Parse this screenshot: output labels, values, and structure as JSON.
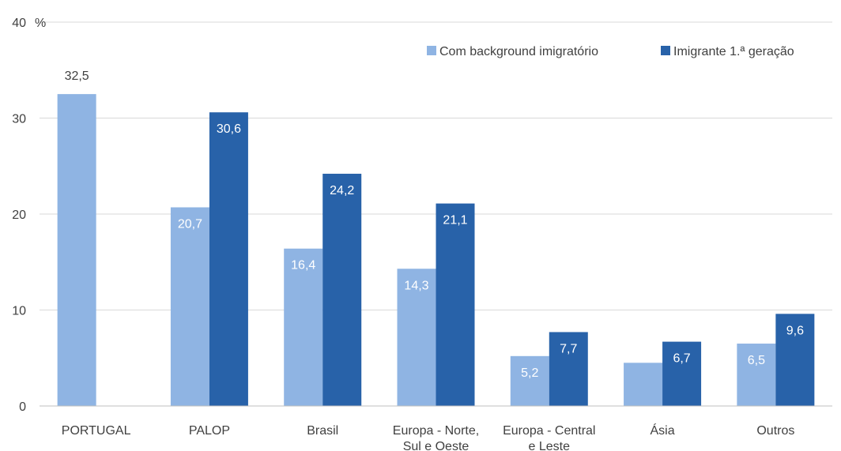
{
  "chart_data": {
    "type": "bar",
    "categories": [
      [
        "PORTUGAL"
      ],
      [
        "PALOP"
      ],
      [
        "Brasil"
      ],
      [
        "Europa - Norte,",
        "Sul e Oeste"
      ],
      [
        "Europa - Central",
        "e Leste"
      ],
      [
        "Ásia"
      ],
      [
        "Outros"
      ]
    ],
    "series": [
      {
        "name": "Com background imigratório",
        "color": "#8fb4e3",
        "values": [
          32.5,
          20.7,
          16.4,
          14.3,
          5.2,
          4.5,
          6.5
        ],
        "labels": [
          "32,5",
          "20,7",
          "16,4",
          "14,3",
          "5,2",
          "4,5",
          "6,5"
        ]
      },
      {
        "name": "Imigrante 1.ª geração",
        "color": "#2862a9",
        "values": [
          null,
          30.6,
          24.2,
          21.1,
          7.7,
          6.7,
          9.6
        ],
        "labels": [
          "",
          "30,6",
          "24,2",
          "21,1",
          "7,7",
          "6,7",
          "9,6"
        ]
      }
    ],
    "ylim": [
      0,
      40
    ],
    "yticks": [
      "0",
      "10",
      "20",
      "30",
      "40"
    ],
    "yunit": "%",
    "grid": true,
    "legend_position": "top-right",
    "axis_color": "#bfbfbf",
    "grid_color": "#d9d9d9",
    "text_color": "#404040",
    "label_light_color": "#ffffff"
  }
}
